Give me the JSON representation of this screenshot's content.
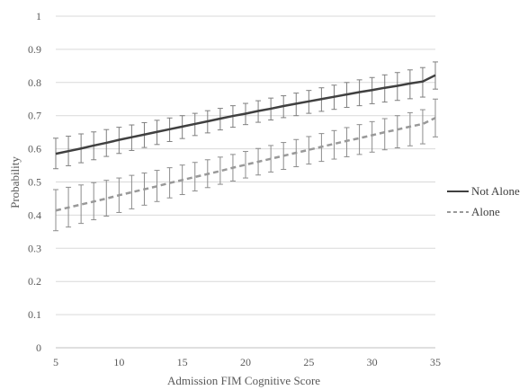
{
  "chart_data": {
    "type": "line",
    "title": "",
    "xlabel": "Admission FIM Cognitive Score",
    "ylabel": "Probability",
    "xlim": [
      5,
      35
    ],
    "ylim": [
      0,
      1
    ],
    "x_ticks": [
      "5",
      "10",
      "15",
      "20",
      "25",
      "30",
      "35"
    ],
    "y_ticks": [
      "0",
      "0.1",
      "0.2",
      "0.3",
      "0.4",
      "0.5",
      "0.6",
      "0.7",
      "0.8",
      "0.9",
      "1"
    ],
    "grid": true,
    "legend_position": "right",
    "x": [
      5,
      6,
      7,
      8,
      9,
      10,
      11,
      12,
      13,
      14,
      15,
      16,
      17,
      18,
      19,
      20,
      21,
      22,
      23,
      24,
      25,
      26,
      27,
      28,
      29,
      30,
      31,
      32,
      33,
      34,
      35
    ],
    "series": [
      {
        "name": "Not Alone",
        "style": "solid",
        "color": "#404040",
        "values": [
          0.585,
          0.593,
          0.601,
          0.61,
          0.618,
          0.627,
          0.635,
          0.643,
          0.651,
          0.659,
          0.667,
          0.675,
          0.683,
          0.691,
          0.699,
          0.706,
          0.714,
          0.721,
          0.729,
          0.736,
          0.743,
          0.75,
          0.757,
          0.764,
          0.771,
          0.777,
          0.784,
          0.79,
          0.797,
          0.803,
          0.822
        ],
        "lower": [
          0.54,
          0.549,
          0.558,
          0.567,
          0.577,
          0.586,
          0.595,
          0.604,
          0.613,
          0.622,
          0.631,
          0.64,
          0.648,
          0.657,
          0.665,
          0.673,
          0.68,
          0.687,
          0.694,
          0.7,
          0.707,
          0.713,
          0.719,
          0.725,
          0.73,
          0.736,
          0.741,
          0.746,
          0.751,
          0.756,
          0.78
        ],
        "upper": [
          0.632,
          0.638,
          0.645,
          0.651,
          0.658,
          0.665,
          0.672,
          0.679,
          0.686,
          0.693,
          0.7,
          0.707,
          0.715,
          0.722,
          0.73,
          0.737,
          0.745,
          0.753,
          0.76,
          0.768,
          0.776,
          0.784,
          0.792,
          0.8,
          0.808,
          0.815,
          0.823,
          0.83,
          0.838,
          0.845,
          0.862
        ]
      },
      {
        "name": "Alone",
        "style": "dashed",
        "color": "#999999",
        "values": [
          0.414,
          0.423,
          0.432,
          0.441,
          0.45,
          0.46,
          0.469,
          0.478,
          0.487,
          0.497,
          0.506,
          0.515,
          0.524,
          0.533,
          0.543,
          0.552,
          0.561,
          0.57,
          0.579,
          0.588,
          0.597,
          0.606,
          0.615,
          0.624,
          0.632,
          0.641,
          0.65,
          0.658,
          0.667,
          0.675,
          0.693
        ],
        "lower": [
          0.353,
          0.364,
          0.375,
          0.386,
          0.397,
          0.408,
          0.419,
          0.43,
          0.441,
          0.452,
          0.462,
          0.473,
          0.483,
          0.493,
          0.503,
          0.512,
          0.521,
          0.53,
          0.538,
          0.546,
          0.554,
          0.562,
          0.569,
          0.576,
          0.583,
          0.59,
          0.597,
          0.603,
          0.609,
          0.615,
          0.636
        ],
        "upper": [
          0.477,
          0.484,
          0.491,
          0.498,
          0.505,
          0.512,
          0.52,
          0.527,
          0.535,
          0.543,
          0.551,
          0.559,
          0.567,
          0.575,
          0.583,
          0.592,
          0.601,
          0.61,
          0.619,
          0.628,
          0.637,
          0.646,
          0.655,
          0.664,
          0.673,
          0.682,
          0.691,
          0.7,
          0.709,
          0.718,
          0.75
        ]
      }
    ]
  }
}
